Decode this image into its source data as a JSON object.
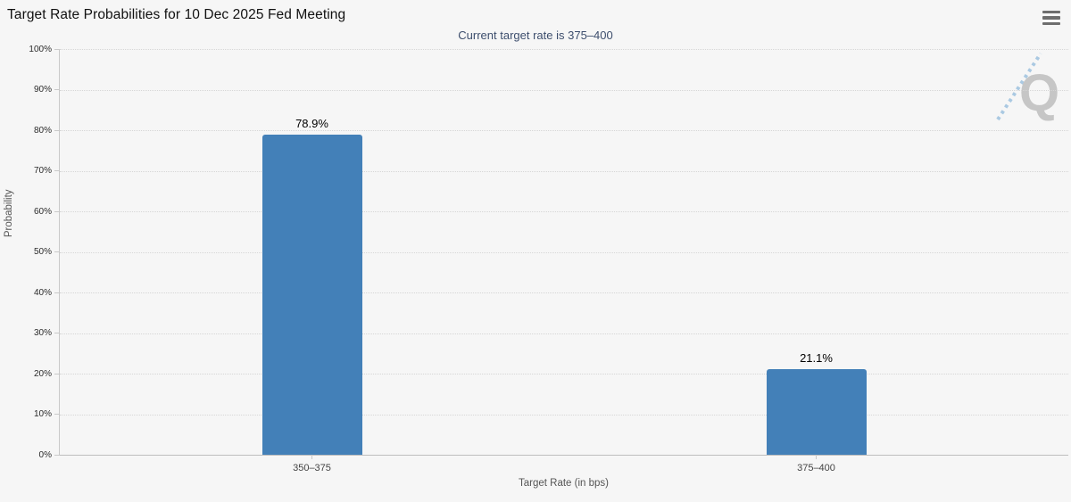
{
  "header": {
    "title": "Target Rate Probabilities for 10 Dec 2025 Fed Meeting",
    "menu_icon": "hamburger-icon"
  },
  "chart_data": {
    "type": "bar",
    "title": "Target Rate Probabilities for 10 Dec 2025 Fed Meeting",
    "subtitle": "Current target rate is 375–400",
    "categories": [
      "350–375",
      "375–400"
    ],
    "values": [
      78.9,
      21.1
    ],
    "value_labels": [
      "78.9%",
      "21.1%"
    ],
    "xlabel": "Target Rate (in bps)",
    "ylabel": "Probability",
    "ylim": [
      0,
      100
    ],
    "ytick_step": 10,
    "ytick_labels": [
      "0%",
      "10%",
      "20%",
      "30%",
      "40%",
      "50%",
      "60%",
      "70%",
      "80%",
      "90%",
      "100%"
    ],
    "grid": "horizontal-dotted",
    "legend": "none",
    "bar_color": "#4380b8",
    "watermark_letter": "Q"
  },
  "colors": {
    "background": "#f6f6f6",
    "bar": "#4380b8",
    "title_text": "#111111",
    "subtitle_text": "#3d4e6d",
    "axis_line": "#c9c9c9",
    "gridline": "#d6d6d6",
    "watermark_q": "#c6c6c6",
    "watermark_dash": "#aac9e2"
  }
}
